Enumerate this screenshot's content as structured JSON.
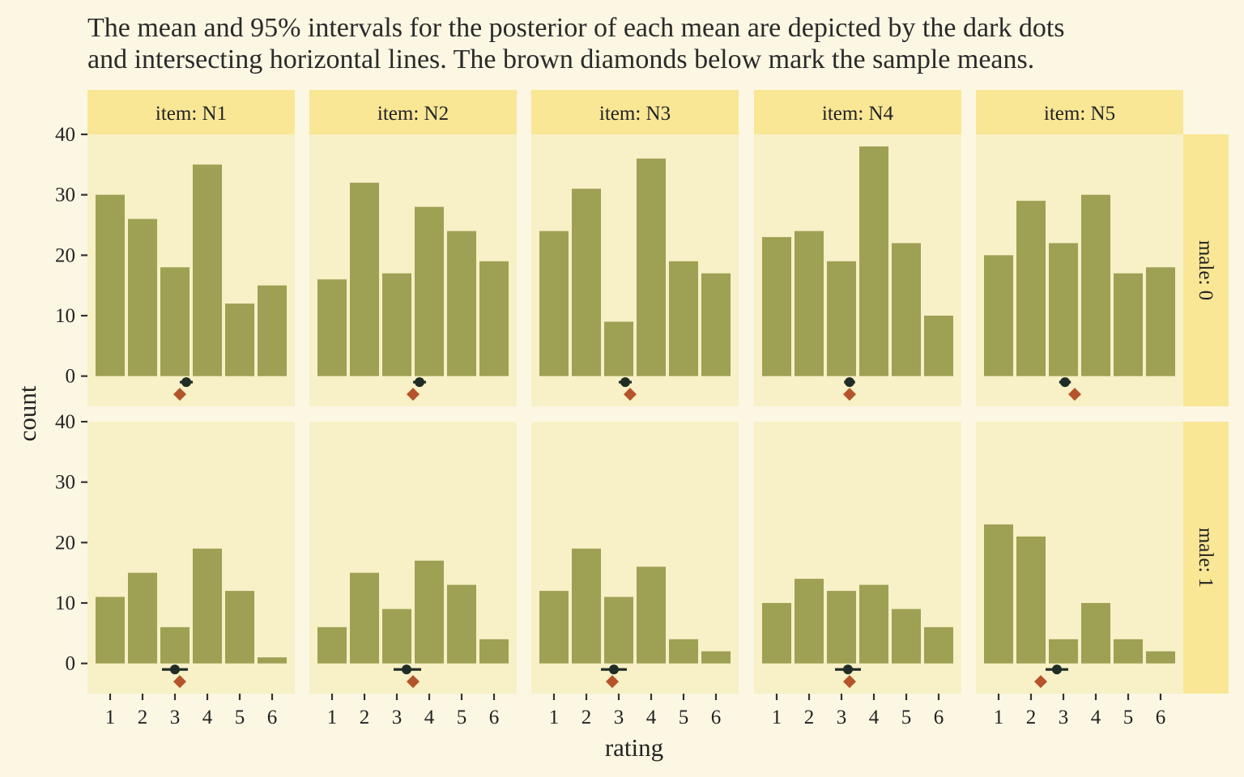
{
  "title_lines": [
    "The mean and 95% intervals for the posterior of each mean are depicted by the dark dots",
    "and intersecting horizontal lines. The brown diamonds below mark the sample means."
  ],
  "colors": {
    "background": "#fcf7e3",
    "panel": "#f8f0c6",
    "strip": "#f9e796",
    "bar": "#9ea054",
    "point": "#1f2d26",
    "diamond": "#b5542a"
  },
  "chart_data": {
    "type": "bar",
    "xlabel": "rating",
    "ylabel": "count",
    "x_categories": [
      1,
      2,
      3,
      4,
      5,
      6
    ],
    "y_ticks": [
      0,
      10,
      20,
      30,
      40
    ],
    "ylim": [
      -5,
      40
    ],
    "facet_columns": [
      "item: N1",
      "item: N2",
      "item: N3",
      "item: N4",
      "item: N5"
    ],
    "facet_rows": [
      "male: 0",
      "male: 1"
    ],
    "panels": [
      {
        "col": 0,
        "row": 0,
        "counts": [
          30,
          26,
          18,
          35,
          12,
          15
        ],
        "posterior_mean": 3.35,
        "ci": [
          3.15,
          3.55
        ],
        "sample_mean": 3.15
      },
      {
        "col": 1,
        "row": 0,
        "counts": [
          16,
          32,
          17,
          28,
          24,
          19
        ],
        "posterior_mean": 3.7,
        "ci": [
          3.5,
          3.9
        ],
        "sample_mean": 3.5
      },
      {
        "col": 2,
        "row": 0,
        "counts": [
          24,
          31,
          9,
          36,
          19,
          17
        ],
        "posterior_mean": 3.2,
        "ci": [
          3.0,
          3.4
        ],
        "sample_mean": 3.35
      },
      {
        "col": 3,
        "row": 0,
        "counts": [
          23,
          24,
          19,
          38,
          22,
          10
        ],
        "posterior_mean": 3.25,
        "ci": [
          3.08,
          3.42
        ],
        "sample_mean": 3.25
      },
      {
        "col": 4,
        "row": 0,
        "counts": [
          20,
          29,
          22,
          30,
          17,
          18
        ],
        "posterior_mean": 3.05,
        "ci": [
          2.87,
          3.23
        ],
        "sample_mean": 3.35
      },
      {
        "col": 0,
        "row": 1,
        "counts": [
          11,
          15,
          6,
          19,
          12,
          1
        ],
        "posterior_mean": 3.0,
        "ci": [
          2.6,
          3.4
        ],
        "sample_mean": 3.15
      },
      {
        "col": 1,
        "row": 1,
        "counts": [
          6,
          15,
          9,
          17,
          13,
          4
        ],
        "posterior_mean": 3.3,
        "ci": [
          2.9,
          3.75
        ],
        "sample_mean": 3.5
      },
      {
        "col": 2,
        "row": 1,
        "counts": [
          12,
          19,
          11,
          16,
          4,
          2
        ],
        "posterior_mean": 2.85,
        "ci": [
          2.45,
          3.25
        ],
        "sample_mean": 2.8
      },
      {
        "col": 3,
        "row": 1,
        "counts": [
          10,
          14,
          12,
          13,
          9,
          6
        ],
        "posterior_mean": 3.2,
        "ci": [
          2.8,
          3.6
        ],
        "sample_mean": 3.25
      },
      {
        "col": 4,
        "row": 1,
        "counts": [
          23,
          21,
          4,
          10,
          4,
          2
        ],
        "posterior_mean": 2.8,
        "ci": [
          2.45,
          3.15
        ],
        "sample_mean": 2.3
      }
    ]
  }
}
